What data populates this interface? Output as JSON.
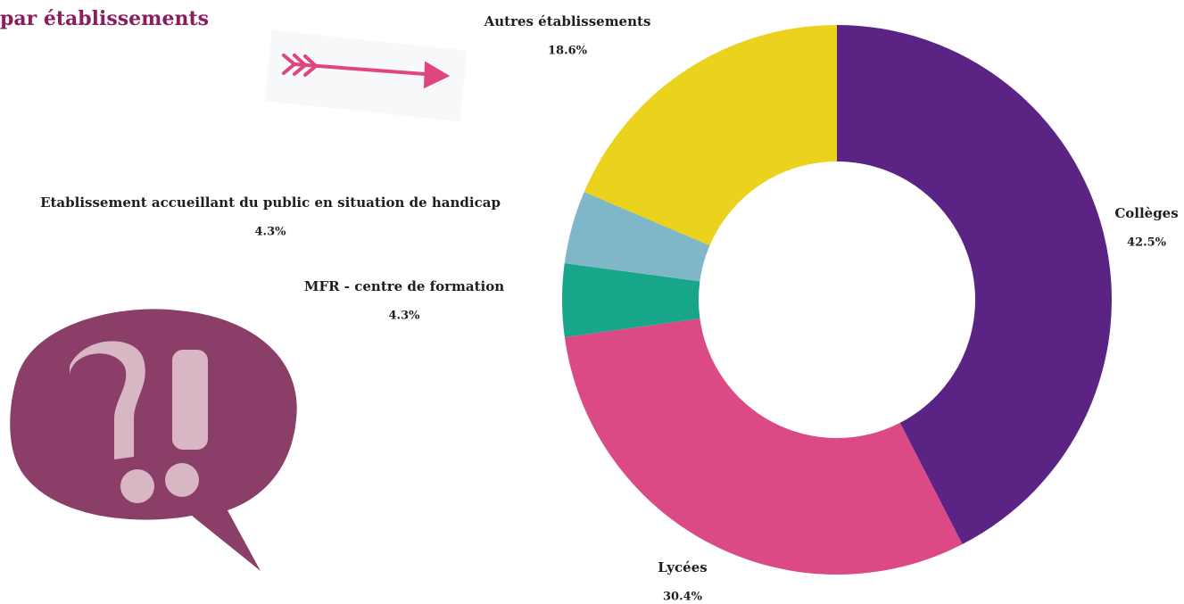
{
  "chart_data": {
    "type": "donut",
    "title": "par établissements",
    "categories": [
      "Collèges",
      "Lycées",
      "MFR - centre de formation",
      "Etablissement accueillant du public en situation de handicap",
      "Autres établissements"
    ],
    "values": [
      42.5,
      30.4,
      4.3,
      4.3,
      18.6
    ],
    "value_labels": [
      "42.5%",
      "30.4%",
      "4.3%",
      "4.3%",
      "18.6%"
    ],
    "colors": [
      "#5b2383",
      "#dc4a86",
      "#18a68a",
      "#7fb6c8",
      "#ebd21c"
    ]
  }
}
